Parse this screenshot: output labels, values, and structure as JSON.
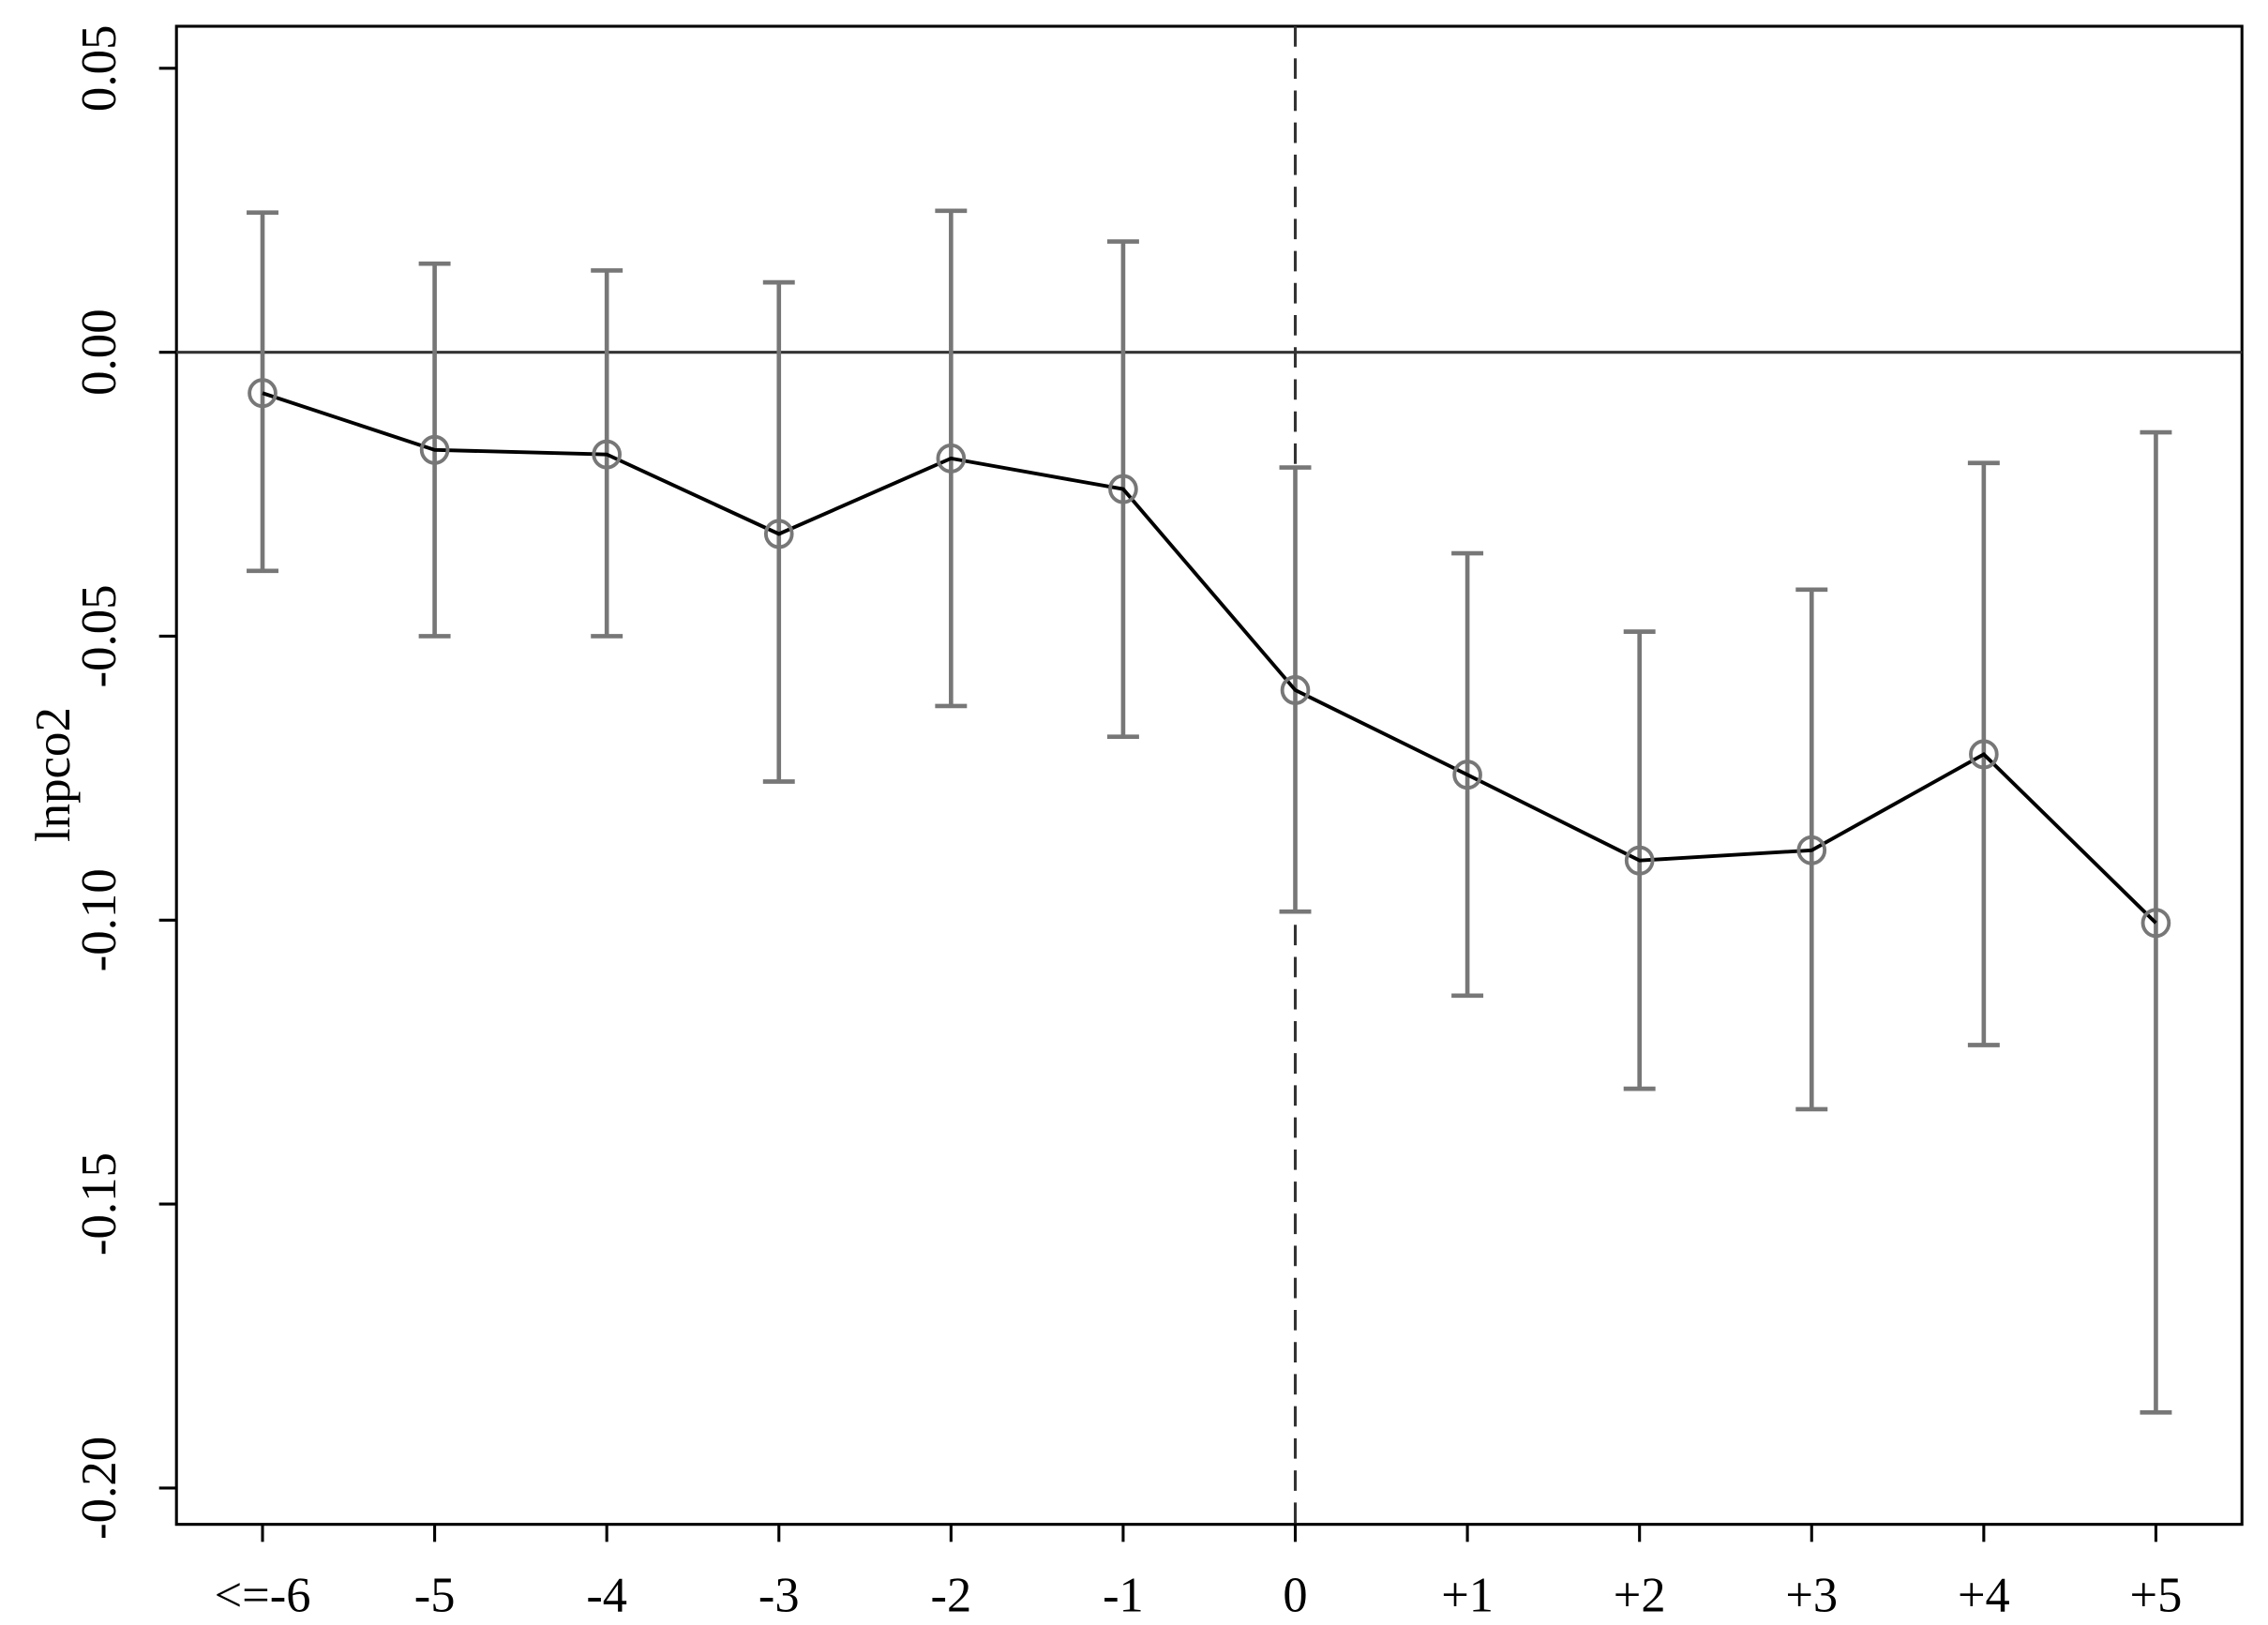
{
  "chart_data": {
    "type": "errorbar-line",
    "y_label": "lnpco2",
    "categories": [
      "<=-6",
      "-5",
      "-4",
      "-3",
      "-2",
      "-1",
      "0",
      "+1",
      "+2",
      "+3",
      "+4",
      "+5"
    ],
    "values": [
      -0.0072,
      -0.0172,
      -0.018,
      -0.032,
      -0.0187,
      -0.0241,
      -0.0595,
      -0.0744,
      -0.0895,
      -0.0877,
      -0.0708,
      -0.1005
    ],
    "upper": [
      0.0246,
      0.0156,
      0.0144,
      0.0123,
      0.0249,
      0.0195,
      -0.0203,
      -0.0354,
      -0.0492,
      -0.0418,
      -0.0195,
      -0.0141
    ],
    "lower": [
      -0.0385,
      -0.05,
      -0.05,
      -0.0756,
      -0.0623,
      -0.0677,
      -0.0985,
      -0.1133,
      -0.1297,
      -0.1333,
      -0.122,
      -0.1867
    ],
    "color": "#000000",
    "errorbar_color": "#777777",
    "ylim": [
      -0.2064,
      0.0574
    ],
    "yticks": [
      0.05,
      {
        "value": 0,
        "label": "0.00"
      },
      -0.05,
      {
        "value": -0.1,
        "label": "-0.10"
      },
      -0.15,
      {
        "value": -0.2,
        "label": "-0.20"
      }
    ],
    "hline": 0,
    "vline_at": "0"
  }
}
